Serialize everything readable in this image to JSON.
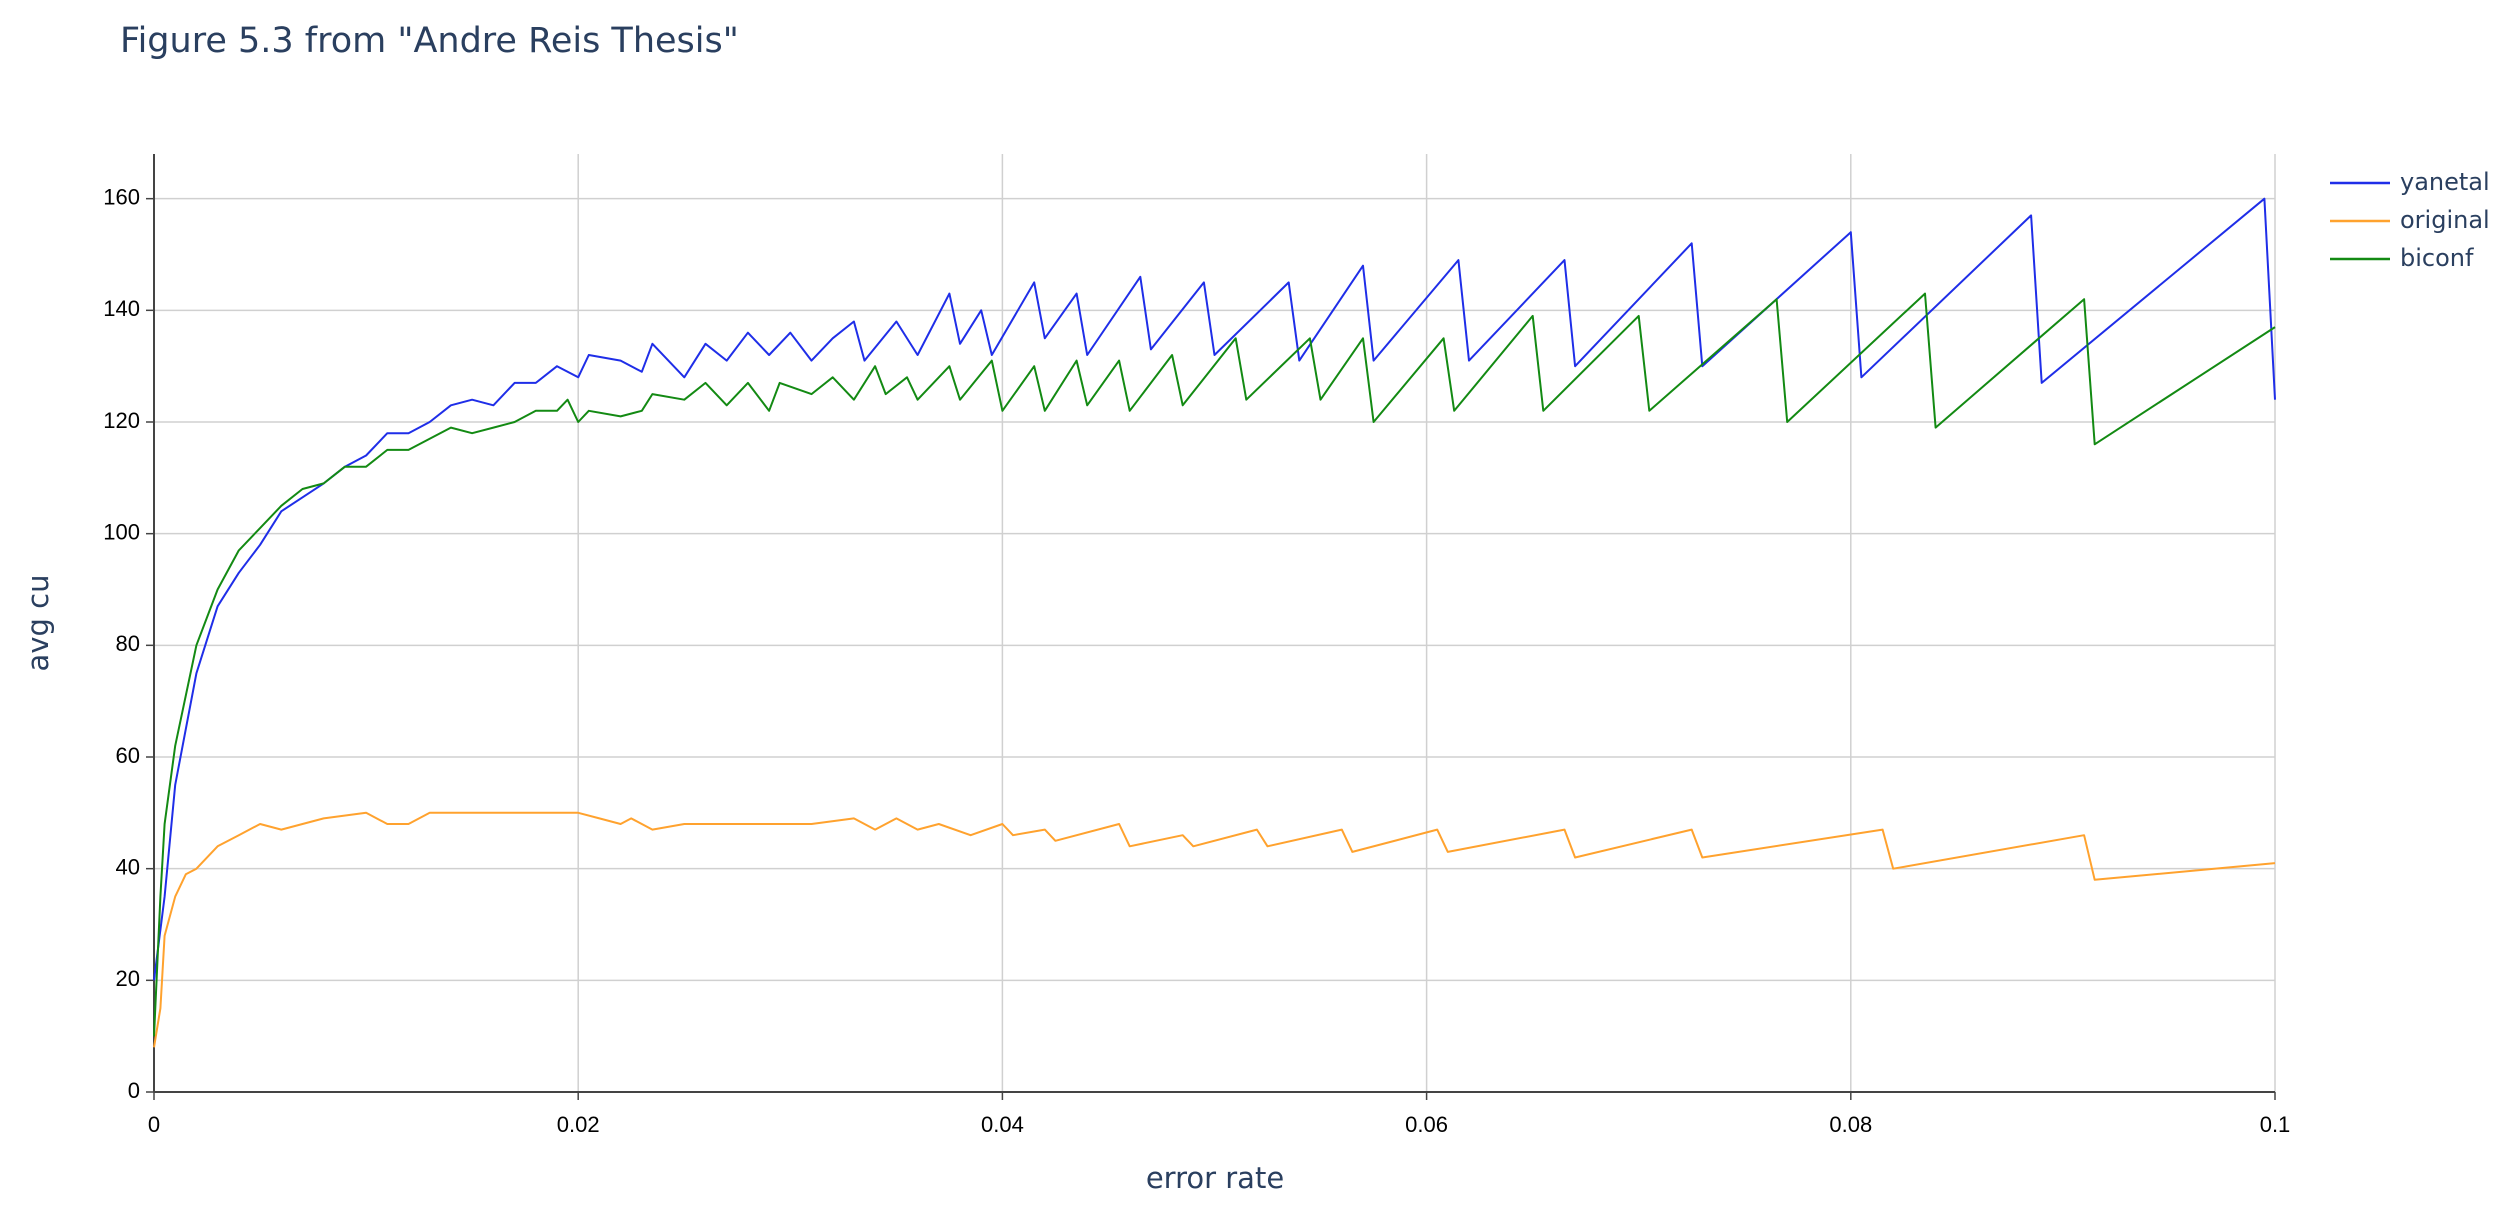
{
  "chart_data": {
    "type": "line",
    "title": "Figure 5.3 from \"Andre Reis Thesis\"",
    "x_label": "error rate",
    "y_label": "avg cu",
    "xlim": [
      0,
      0.1
    ],
    "ylim": [
      0,
      168
    ],
    "xticks": [
      0,
      0.02,
      0.04,
      0.06,
      0.08,
      0.1
    ],
    "yticks": [
      0,
      20,
      40,
      60,
      80,
      100,
      120,
      140,
      160
    ],
    "grid": true,
    "legend": "top-right",
    "series": [
      {
        "name": "yanetal",
        "color": "#1f2ee8",
        "x": [
          0,
          0.0005,
          0.001,
          0.002,
          0.003,
          0.004,
          0.005,
          0.006,
          0.008,
          0.009,
          0.01,
          0.011,
          0.012,
          0.013,
          0.014,
          0.015,
          0.016,
          0.017,
          0.018,
          0.019,
          0.02,
          0.0205,
          0.022,
          0.023,
          0.0235,
          0.025,
          0.026,
          0.027,
          0.028,
          0.029,
          0.03,
          0.031,
          0.032,
          0.033,
          0.0335,
          0.035,
          0.036,
          0.0375,
          0.038,
          0.039,
          0.0395,
          0.0415,
          0.042,
          0.0435,
          0.044,
          0.0465,
          0.047,
          0.0495,
          0.05,
          0.0535,
          0.054,
          0.057,
          0.0575,
          0.0615,
          0.062,
          0.0665,
          0.067,
          0.0725,
          0.073,
          0.08,
          0.0805,
          0.0885,
          0.089,
          0.0995,
          0.1
        ],
        "values": [
          20,
          35,
          55,
          75,
          87,
          93,
          98,
          104,
          109,
          112,
          114,
          118,
          118,
          120,
          123,
          124,
          123,
          127,
          127,
          130,
          128,
          132,
          131,
          129,
          134,
          128,
          134,
          131,
          136,
          132,
          136,
          131,
          135,
          138,
          131,
          138,
          132,
          143,
          134,
          140,
          132,
          145,
          135,
          143,
          132,
          146,
          133,
          145,
          132,
          145,
          131,
          148,
          131,
          149,
          131,
          149,
          130,
          152,
          130,
          154,
          128,
          157,
          127,
          160,
          124
        ]
      },
      {
        "name": "original",
        "color": "#ffa22e",
        "x": [
          0,
          0.0003,
          0.0005,
          0.001,
          0.0015,
          0.002,
          0.003,
          0.004,
          0.005,
          0.006,
          0.008,
          0.01,
          0.011,
          0.012,
          0.013,
          0.015,
          0.017,
          0.019,
          0.02,
          0.021,
          0.022,
          0.0225,
          0.0235,
          0.025,
          0.027,
          0.029,
          0.031,
          0.033,
          0.034,
          0.035,
          0.036,
          0.037,
          0.0385,
          0.04,
          0.0405,
          0.042,
          0.0425,
          0.0455,
          0.046,
          0.0485,
          0.049,
          0.052,
          0.0525,
          0.056,
          0.0565,
          0.0605,
          0.061,
          0.0665,
          0.067,
          0.0725,
          0.073,
          0.0815,
          0.082,
          0.091,
          0.0915,
          0.1
        ],
        "values": [
          8,
          15,
          28,
          35,
          39,
          40,
          44,
          46,
          48,
          47,
          49,
          50,
          48,
          48,
          50,
          50,
          50,
          50,
          50,
          49,
          48,
          49,
          47,
          48,
          48,
          48,
          48,
          49,
          47,
          49,
          47,
          48,
          46,
          48,
          46,
          47,
          45,
          48,
          44,
          46,
          44,
          47,
          44,
          47,
          43,
          47,
          43,
          47,
          42,
          47,
          42,
          47,
          40,
          46,
          38,
          41
        ]
      },
      {
        "name": "biconf",
        "color": "#138a13",
        "x": [
          0,
          0.0003,
          0.0005,
          0.001,
          0.002,
          0.003,
          0.004,
          0.005,
          0.006,
          0.007,
          0.008,
          0.009,
          0.01,
          0.011,
          0.012,
          0.013,
          0.014,
          0.015,
          0.016,
          0.017,
          0.018,
          0.019,
          0.0195,
          0.02,
          0.0205,
          0.022,
          0.023,
          0.0235,
          0.025,
          0.026,
          0.027,
          0.028,
          0.029,
          0.0295,
          0.031,
          0.032,
          0.033,
          0.034,
          0.0345,
          0.0355,
          0.036,
          0.0375,
          0.038,
          0.0395,
          0.04,
          0.0415,
          0.042,
          0.0435,
          0.044,
          0.0455,
          0.046,
          0.048,
          0.0485,
          0.051,
          0.0515,
          0.0545,
          0.055,
          0.057,
          0.0575,
          0.0608,
          0.0613,
          0.065,
          0.0655,
          0.07,
          0.0705,
          0.0765,
          0.077,
          0.0835,
          0.084,
          0.091,
          0.0915,
          0.1
        ],
        "values": [
          10,
          35,
          48,
          62,
          80,
          90,
          97,
          101,
          105,
          108,
          109,
          112,
          112,
          115,
          115,
          117,
          119,
          118,
          119,
          120,
          122,
          122,
          124,
          120,
          122,
          121,
          122,
          125,
          124,
          127,
          123,
          127,
          122,
          127,
          125,
          128,
          124,
          130,
          125,
          128,
          124,
          130,
          124,
          131,
          122,
          130,
          122,
          131,
          123,
          131,
          122,
          132,
          123,
          135,
          124,
          135,
          124,
          135,
          120,
          135,
          122,
          139,
          122,
          139,
          122,
          142,
          120,
          143,
          119,
          142,
          116,
          137
        ]
      }
    ]
  }
}
